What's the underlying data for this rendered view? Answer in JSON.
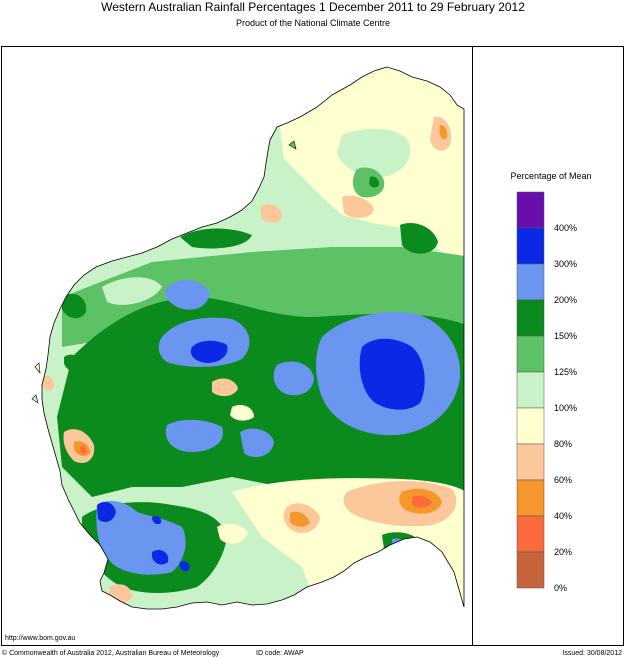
{
  "header": {
    "title": "Western Australian Rainfall Percentages 1 December 2011 to 29 February 2012",
    "subtitle": "Product of the National Climate Centre"
  },
  "legend": {
    "title": "Percentage of Mean",
    "classes": [
      {
        "color": "#6a0dad"
      },
      {
        "color": "#0a28e6"
      },
      {
        "color": "#6b96f0"
      },
      {
        "color": "#0b8a1e"
      },
      {
        "color": "#5cc265"
      },
      {
        "color": "#c9f2c9"
      },
      {
        "color": "#ffffd0"
      },
      {
        "color": "#fcc79a"
      },
      {
        "color": "#f7962a"
      },
      {
        "color": "#fa6a3c"
      },
      {
        "color": "#c8643c"
      }
    ],
    "ticks": [
      "400%",
      "300%",
      "200%",
      "150%",
      "125%",
      "100%",
      "80%",
      "60%",
      "40%",
      "20%",
      "0%"
    ]
  },
  "footer": {
    "url": "http://www.bom.gov.au",
    "copyright": "© Commonwealth of Australia 2012, Australian Bureau of Meteorology",
    "id_code": "ID code: AWAP",
    "issued": "Issued: 30/08/2012"
  }
}
